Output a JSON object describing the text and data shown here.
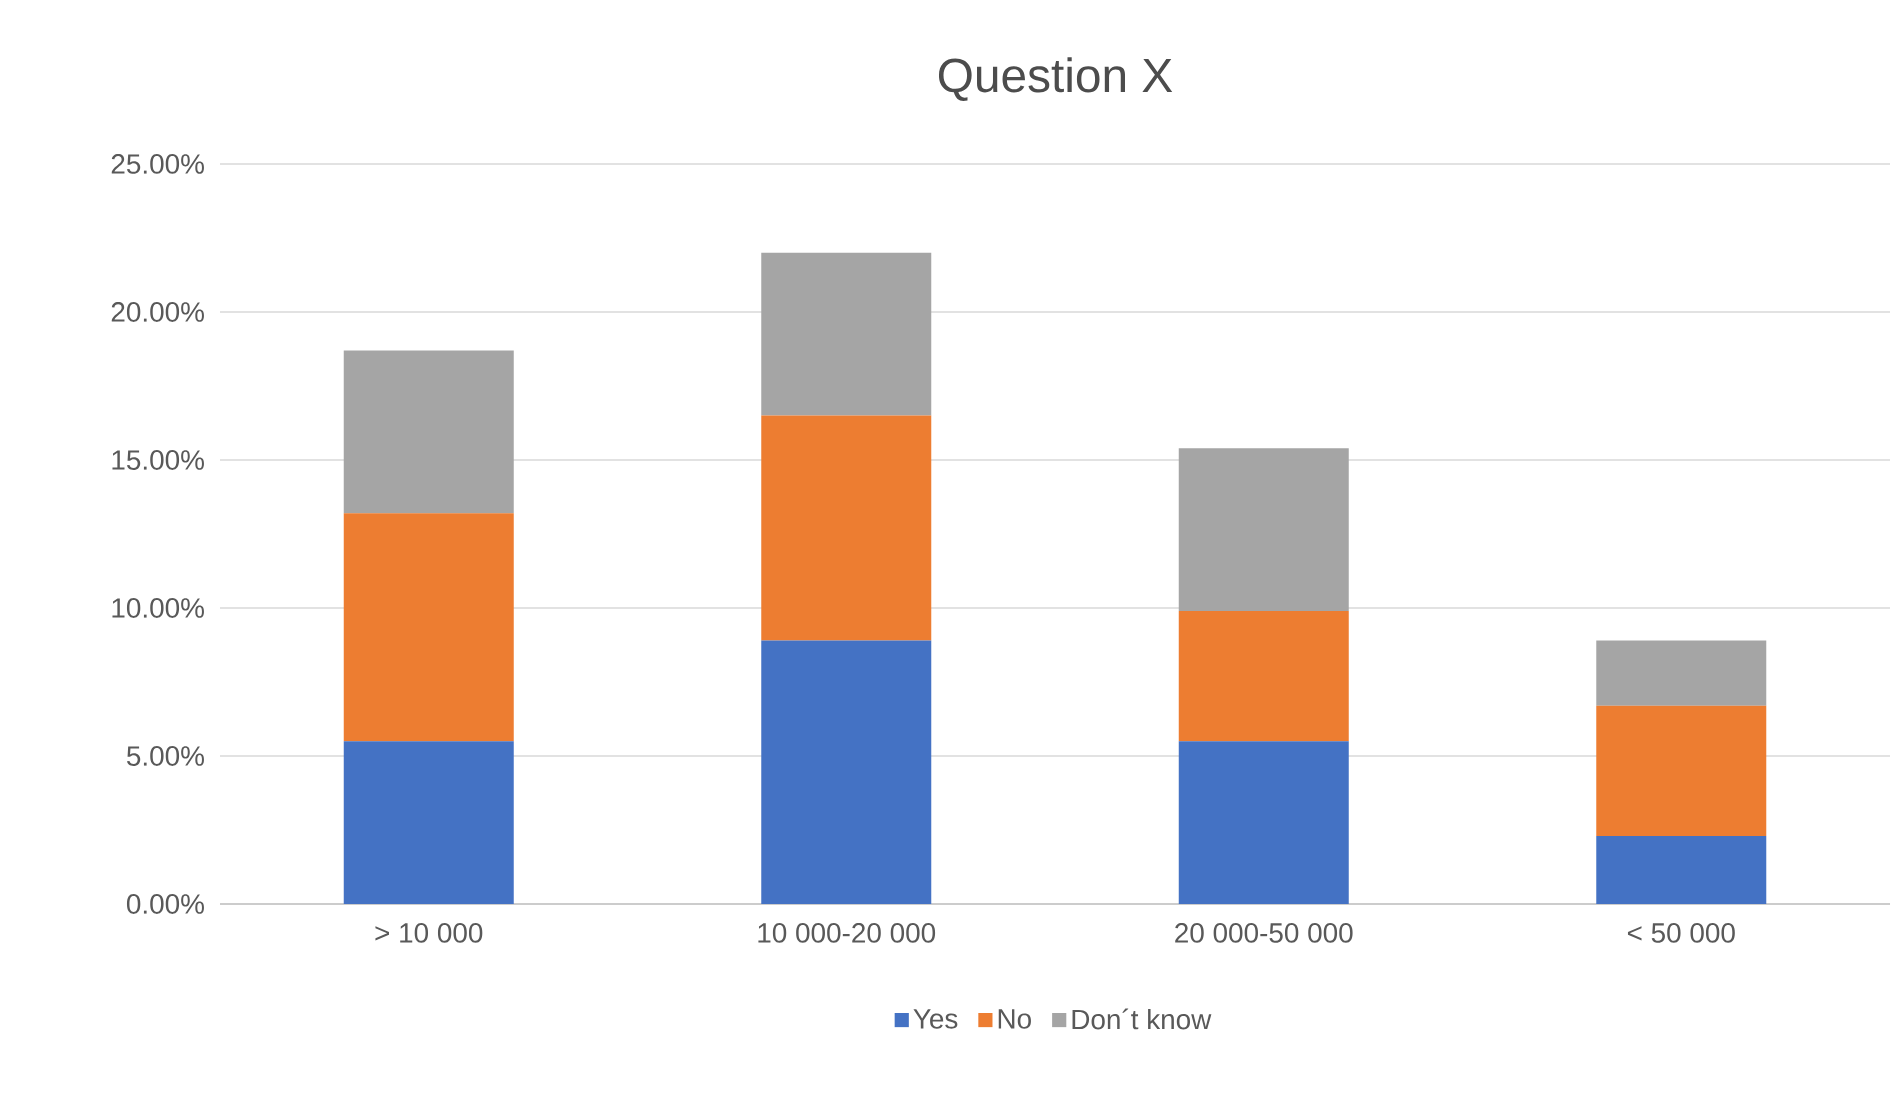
{
  "chart_data": {
    "type": "bar",
    "title": "Question X",
    "stacked": true,
    "categories": [
      "> 10 000",
      "10 000-20 000",
      "20 000-50 000",
      "< 50 000"
    ],
    "series": [
      {
        "name": "Yes",
        "color": "#4472c4",
        "values": [
          5.5,
          8.9,
          5.5,
          2.3
        ]
      },
      {
        "name": "No",
        "color": "#ed7d31",
        "values": [
          7.7,
          7.6,
          4.4,
          4.4
        ]
      },
      {
        "name": "Don´t know",
        "color": "#a5a5a5",
        "values": [
          5.5,
          5.5,
          5.5,
          2.2
        ]
      }
    ],
    "ylim": [
      0,
      25
    ],
    "yticks": [
      {
        "value": 0,
        "label": "0.00%"
      },
      {
        "value": 5,
        "label": "5.00%"
      },
      {
        "value": 10,
        "label": "10.00%"
      },
      {
        "value": 15,
        "label": "15.00%"
      },
      {
        "value": 20,
        "label": "20.00%"
      },
      {
        "value": 25,
        "label": "25.00%"
      }
    ],
    "grid": "y",
    "legend": "bottom"
  }
}
